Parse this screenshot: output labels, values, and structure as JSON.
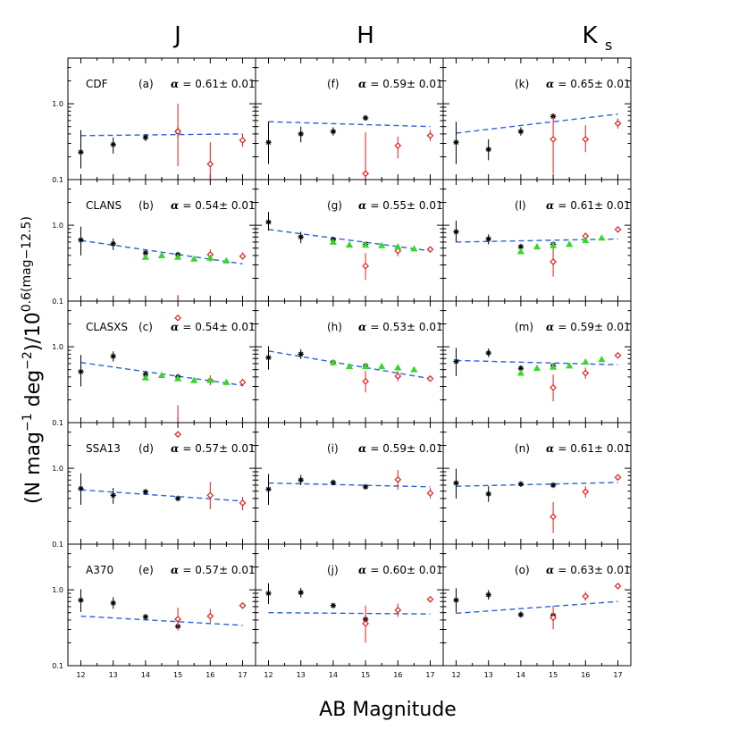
{
  "figure": {
    "column_titles": [
      "J",
      "H",
      "K"
    ],
    "column_title_sub": [
      "",
      "",
      "s"
    ],
    "xlabel": "AB Magnitude",
    "ylabel": "(N mag⁻¹ deg⁻²)/10⁰·⁶⁽ᵐᵃᵍ⁻¹²·⁵⁾",
    "ylabel_parts": {
      "a": "(N mag",
      "b": "−1",
      "c": " deg",
      "d": "−2",
      "e": ")/10",
      "f": "0.6(mag−12.5)"
    },
    "row_fields": [
      "CDF",
      "CLANS",
      "CLASXS",
      "SSA13",
      "A370"
    ],
    "x_ticks": [
      "12",
      "13",
      "14",
      "15",
      "16",
      "17"
    ],
    "y_ticks": [
      "0.1",
      "1.0"
    ],
    "alpha_symbol": "α",
    "colors": {
      "black": "#000000",
      "red": "#e0201a",
      "green": "#38d62a",
      "blue": "#2a62d9"
    }
  },
  "chart_data": {
    "type": "scatter",
    "title": "",
    "xlabel": "AB Magnitude",
    "ylabel": "(N mag^-1 deg^-2)/10^0.6(mag-12.5)",
    "xlim": [
      11.6,
      17.4
    ],
    "ylim": [
      0.1,
      4.0
    ],
    "yscale": "log",
    "series_legend": {
      "black": "asterisk markers",
      "red": "diamond markers",
      "green": "triangle markers",
      "fit": "dashed blue power-law fit"
    },
    "panels": [
      {
        "id": "a",
        "band": "J",
        "field": "CDF",
        "letter": "(a)",
        "alpha_text": "= 0.61± 0.01",
        "fit": [
          0.38,
          0.4
        ],
        "black": [
          [
            12,
            0.23,
            0.14,
            0.45
          ],
          [
            13,
            0.29,
            0.22,
            0.36
          ],
          [
            14,
            0.36,
            0.32,
            0.4
          ],
          [
            15,
            0.43,
            0.36,
            0.5
          ]
        ],
        "red": [
          [
            15,
            0.43,
            0.15,
            1.0
          ],
          [
            16,
            0.16,
            0.09,
            0.31
          ],
          [
            17,
            0.33,
            0.27,
            0.4
          ]
        ],
        "green": []
      },
      {
        "id": "f",
        "band": "H",
        "field": "",
        "letter": "(f)",
        "alpha_text": "= 0.59± 0.01",
        "fit": [
          0.58,
          0.5
        ],
        "black": [
          [
            12,
            0.31,
            0.16,
            0.58
          ],
          [
            13,
            0.4,
            0.31,
            0.5
          ],
          [
            14,
            0.43,
            0.38,
            0.49
          ],
          [
            15,
            0.65,
            0.61,
            0.69
          ]
        ],
        "red": [
          [
            15,
            0.12,
            0.05,
            0.42
          ],
          [
            16,
            0.28,
            0.19,
            0.37
          ],
          [
            17,
            0.38,
            0.32,
            0.45
          ]
        ],
        "green": []
      },
      {
        "id": "k",
        "band": "Ks",
        "field": "",
        "letter": "(k)",
        "alpha_text": "= 0.65± 0.01",
        "fit": [
          0.41,
          0.73
        ],
        "black": [
          [
            12,
            0.31,
            0.16,
            0.58
          ],
          [
            13,
            0.25,
            0.18,
            0.34
          ],
          [
            14,
            0.43,
            0.38,
            0.49
          ],
          [
            15,
            0.68,
            0.62,
            0.74
          ]
        ],
        "red": [
          [
            15,
            0.34,
            0.12,
            0.68
          ],
          [
            16,
            0.34,
            0.23,
            0.52
          ],
          [
            17,
            0.55,
            0.47,
            0.64
          ]
        ],
        "green": []
      },
      {
        "id": "b",
        "band": "J",
        "field": "CLANS",
        "letter": "(b)",
        "alpha_text": "= 0.54± 0.01",
        "fit": [
          0.63,
          0.31
        ],
        "black": [
          [
            12,
            0.64,
            0.4,
            0.96
          ],
          [
            13,
            0.57,
            0.47,
            0.67
          ],
          [
            14,
            0.43,
            0.38,
            0.48
          ],
          [
            15,
            0.41,
            0.38,
            0.44
          ]
        ],
        "red": [
          [
            15,
            0.06,
            0.03,
            0.12
          ],
          [
            16,
            0.41,
            0.33,
            0.48
          ],
          [
            17,
            0.39,
            0.35,
            0.44
          ]
        ],
        "green": [
          [
            14,
            0.38
          ],
          [
            14.5,
            0.4
          ],
          [
            15,
            0.38
          ],
          [
            15.5,
            0.36
          ],
          [
            16,
            0.37
          ],
          [
            16.5,
            0.34
          ]
        ]
      },
      {
        "id": "g",
        "band": "H",
        "field": "",
        "letter": "(g)",
        "alpha_text": "= 0.55± 0.01",
        "fit": [
          0.88,
          0.46
        ],
        "black": [
          [
            12,
            1.1,
            0.85,
            1.5
          ],
          [
            13,
            0.7,
            0.58,
            0.82
          ],
          [
            14,
            0.65,
            0.6,
            0.7
          ],
          [
            15,
            0.56,
            0.53,
            0.6
          ]
        ],
        "red": [
          [
            15,
            0.29,
            0.19,
            0.43
          ],
          [
            16,
            0.46,
            0.39,
            0.53
          ],
          [
            17,
            0.48,
            0.45,
            0.52
          ]
        ],
        "green": [
          [
            14,
            0.6
          ],
          [
            14.5,
            0.55
          ],
          [
            15,
            0.55
          ],
          [
            15.5,
            0.54
          ],
          [
            16,
            0.52
          ],
          [
            16.5,
            0.49
          ]
        ]
      },
      {
        "id": "l",
        "band": "Ks",
        "field": "",
        "letter": "(l)",
        "alpha_text": "= 0.61± 0.01",
        "fit": [
          0.6,
          0.66
        ],
        "black": [
          [
            12,
            0.82,
            0.6,
            1.15
          ],
          [
            13,
            0.66,
            0.56,
            0.76
          ],
          [
            14,
            0.52,
            0.47,
            0.57
          ],
          [
            15,
            0.56,
            0.52,
            0.6
          ]
        ],
        "red": [
          [
            15,
            0.33,
            0.21,
            0.52
          ],
          [
            16,
            0.72,
            0.65,
            0.8
          ],
          [
            17,
            0.88,
            0.82,
            0.94
          ]
        ],
        "green": [
          [
            14,
            0.45
          ],
          [
            14.5,
            0.52
          ],
          [
            15,
            0.54
          ],
          [
            15.5,
            0.56
          ],
          [
            16,
            0.63
          ],
          [
            16.5,
            0.68
          ]
        ]
      },
      {
        "id": "c",
        "band": "J",
        "field": "CLASXS",
        "letter": "(c)",
        "alpha_text": "= 0.54± 0.01",
        "fit": [
          0.62,
          0.31
        ],
        "black": [
          [
            12,
            0.47,
            0.3,
            0.78
          ],
          [
            13,
            0.75,
            0.64,
            0.87
          ],
          [
            14,
            0.43,
            0.38,
            0.48
          ],
          [
            15,
            0.4,
            0.37,
            0.44
          ]
        ],
        "red": [
          [
            15,
            0.07,
            0.03,
            0.17
          ],
          [
            16,
            0.36,
            0.31,
            0.42
          ],
          [
            17,
            0.34,
            0.3,
            0.38
          ]
        ],
        "green": [
          [
            14,
            0.39
          ],
          [
            14.5,
            0.42
          ],
          [
            15,
            0.38
          ],
          [
            15.5,
            0.36
          ],
          [
            16,
            0.36
          ],
          [
            16.5,
            0.34
          ]
        ]
      },
      {
        "id": "h",
        "band": "H",
        "field": "",
        "letter": "(h)",
        "alpha_text": "= 0.53± 0.01",
        "fit": [
          0.88,
          0.38
        ],
        "black": [
          [
            12,
            0.72,
            0.5,
            1.02
          ],
          [
            13,
            0.8,
            0.69,
            0.93
          ],
          [
            14,
            0.62,
            0.57,
            0.67
          ],
          [
            15,
            0.56,
            0.52,
            0.6
          ]
        ],
        "red": [
          [
            15,
            0.35,
            0.25,
            0.48
          ],
          [
            16,
            0.41,
            0.35,
            0.48
          ],
          [
            17,
            0.38,
            0.35,
            0.41
          ]
        ],
        "green": [
          [
            14,
            0.62
          ],
          [
            14.5,
            0.55
          ],
          [
            15,
            0.55
          ],
          [
            15.5,
            0.55
          ],
          [
            16,
            0.53
          ],
          [
            16.5,
            0.5
          ]
        ]
      },
      {
        "id": "m",
        "band": "Ks",
        "field": "",
        "letter": "(m)",
        "alpha_text": "= 0.59± 0.01",
        "fit": [
          0.66,
          0.58
        ],
        "black": [
          [
            12,
            0.64,
            0.41,
            0.97
          ],
          [
            13,
            0.83,
            0.73,
            0.95
          ],
          [
            14,
            0.52,
            0.47,
            0.57
          ],
          [
            15,
            0.56,
            0.52,
            0.6
          ]
        ],
        "red": [
          [
            15,
            0.29,
            0.19,
            0.43
          ],
          [
            16,
            0.45,
            0.38,
            0.53
          ],
          [
            17,
            0.77,
            0.72,
            0.82
          ]
        ],
        "green": [
          [
            14,
            0.45
          ],
          [
            14.5,
            0.52
          ],
          [
            15,
            0.54
          ],
          [
            15.5,
            0.56
          ],
          [
            16,
            0.63
          ],
          [
            16.5,
            0.68
          ]
        ]
      },
      {
        "id": "d",
        "band": "J",
        "field": "SSA13",
        "letter": "(d)",
        "alpha_text": "= 0.57± 0.01",
        "fit": [
          0.52,
          0.37
        ],
        "black": [
          [
            12,
            0.54,
            0.33,
            0.86
          ],
          [
            13,
            0.44,
            0.34,
            0.55
          ],
          [
            14,
            0.49,
            0.45,
            0.53
          ],
          [
            15,
            0.4,
            0.38,
            0.42
          ]
        ],
        "red": [
          [
            16,
            0.44,
            0.29,
            0.66
          ],
          [
            17,
            0.35,
            0.28,
            0.42
          ]
        ],
        "green": []
      },
      {
        "id": "i",
        "band": "H",
        "field": "",
        "letter": "(i)",
        "alpha_text": "= 0.59± 0.01",
        "fit": [
          0.64,
          0.57
        ],
        "black": [
          [
            12,
            0.53,
            0.33,
            0.84
          ],
          [
            13,
            0.7,
            0.6,
            0.82
          ],
          [
            14,
            0.65,
            0.61,
            0.7
          ],
          [
            15,
            0.57,
            0.55,
            0.6
          ]
        ],
        "red": [
          [
            16,
            0.71,
            0.52,
            0.95
          ],
          [
            17,
            0.47,
            0.4,
            0.55
          ]
        ],
        "green": []
      },
      {
        "id": "n",
        "band": "Ks",
        "field": "",
        "letter": "(n)",
        "alpha_text": "= 0.61± 0.01",
        "fit": [
          0.58,
          0.65
        ],
        "black": [
          [
            12,
            0.64,
            0.4,
            0.99
          ],
          [
            13,
            0.46,
            0.36,
            0.58
          ],
          [
            14,
            0.62,
            0.58,
            0.66
          ],
          [
            15,
            0.6,
            0.57,
            0.63
          ]
        ],
        "red": [
          [
            15,
            0.23,
            0.14,
            0.36
          ],
          [
            16,
            0.49,
            0.41,
            0.58
          ],
          [
            17,
            0.76,
            0.71,
            0.82
          ]
        ],
        "green": []
      },
      {
        "id": "e",
        "band": "J",
        "field": "A370",
        "letter": "(e)",
        "alpha_text": "= 0.57± 0.01",
        "fit": [
          0.45,
          0.34
        ],
        "black": [
          [
            12,
            0.73,
            0.51,
            1.02
          ],
          [
            13,
            0.67,
            0.56,
            0.8
          ],
          [
            14,
            0.44,
            0.4,
            0.48
          ],
          [
            15,
            0.33,
            0.3,
            0.37
          ]
        ],
        "red": [
          [
            15,
            0.41,
            0.29,
            0.58
          ],
          [
            16,
            0.45,
            0.37,
            0.56
          ],
          [
            17,
            0.62,
            0.56,
            0.68
          ]
        ],
        "green": []
      },
      {
        "id": "j",
        "band": "H",
        "field": "",
        "letter": "(j)",
        "alpha_text": "= 0.60± 0.01",
        "fit": [
          0.5,
          0.48
        ],
        "black": [
          [
            12,
            0.9,
            0.65,
            1.22
          ],
          [
            13,
            0.92,
            0.79,
            1.06
          ],
          [
            14,
            0.62,
            0.58,
            0.66
          ],
          [
            15,
            0.41,
            0.36,
            0.46
          ]
        ],
        "red": [
          [
            15,
            0.36,
            0.2,
            0.62
          ],
          [
            16,
            0.54,
            0.44,
            0.66
          ],
          [
            17,
            0.75,
            0.68,
            0.82
          ]
        ],
        "green": []
      },
      {
        "id": "o",
        "band": "Ks",
        "field": "",
        "letter": "(o)",
        "alpha_text": "= 0.63± 0.01",
        "fit": [
          0.49,
          0.7
        ],
        "black": [
          [
            12,
            0.73,
            0.5,
            1.05
          ],
          [
            13,
            0.86,
            0.74,
            0.99
          ],
          [
            14,
            0.47,
            0.43,
            0.52
          ],
          [
            15,
            0.46,
            0.42,
            0.5
          ]
        ],
        "red": [
          [
            15,
            0.43,
            0.3,
            0.62
          ],
          [
            16,
            0.82,
            0.72,
            0.94
          ],
          [
            17,
            1.12,
            1.05,
            1.2
          ]
        ],
        "green": []
      }
    ]
  }
}
